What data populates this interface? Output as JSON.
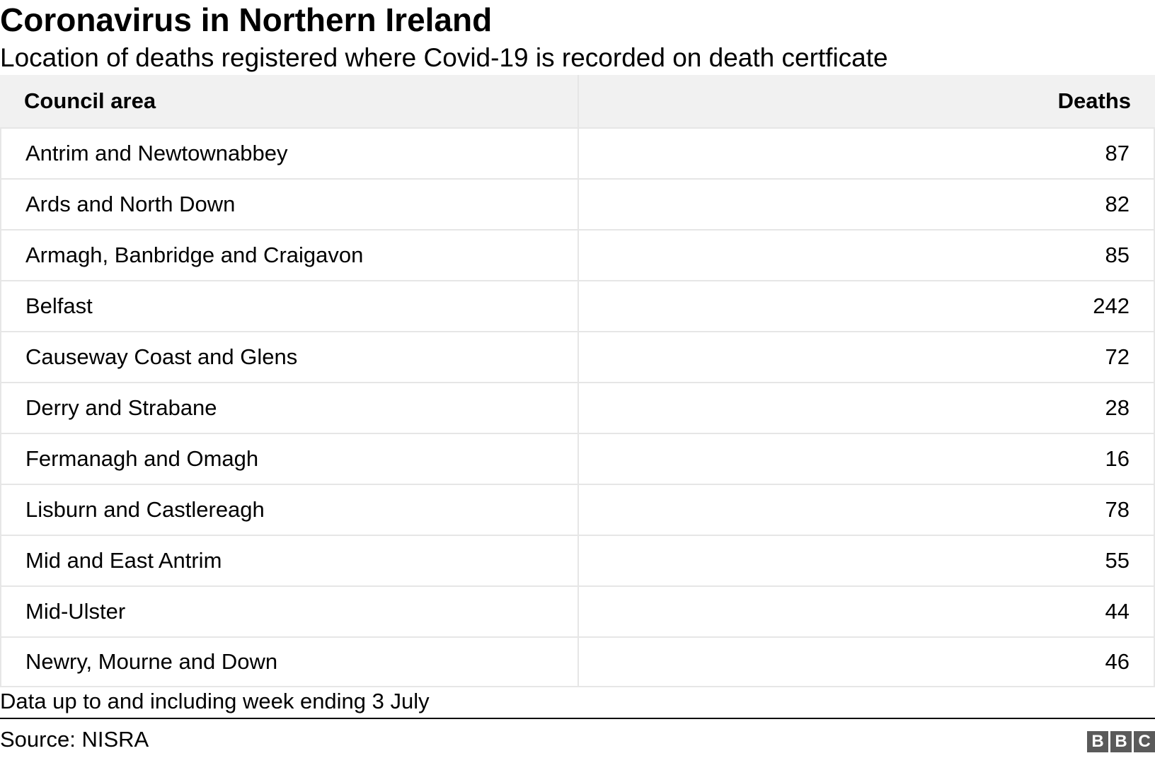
{
  "header": {
    "title": "Coronavirus in Northern Ireland",
    "subtitle": "Location of deaths registered where Covid-19 is recorded on death certficate"
  },
  "chart_data": {
    "type": "table",
    "columns": [
      "Council area",
      "Deaths"
    ],
    "rows": [
      {
        "area": "Antrim and Newtownabbey",
        "deaths": "87"
      },
      {
        "area": "Ards and North Down",
        "deaths": "82"
      },
      {
        "area": "Armagh, Banbridge and Craigavon",
        "deaths": "85"
      },
      {
        "area": "Belfast",
        "deaths": "242"
      },
      {
        "area": "Causeway Coast and Glens",
        "deaths": "72"
      },
      {
        "area": "Derry and Strabane",
        "deaths": "28"
      },
      {
        "area": "Fermanagh and Omagh",
        "deaths": "16"
      },
      {
        "area": "Lisburn and Castlereagh",
        "deaths": "78"
      },
      {
        "area": "Mid and East Antrim",
        "deaths": "55"
      },
      {
        "area": "Mid-Ulster",
        "deaths": "44"
      },
      {
        "area": "Newry, Mourne and Down",
        "deaths": "46"
      }
    ]
  },
  "footer": {
    "note": "Data up to and including week ending 3 July",
    "source": "Source: NISRA",
    "logo_letters": [
      "B",
      "B",
      "C"
    ]
  },
  "colors": {
    "header_bg": "#f1f1f1",
    "border": "#e6e6e6",
    "logo_bg": "#5a5a5a"
  }
}
